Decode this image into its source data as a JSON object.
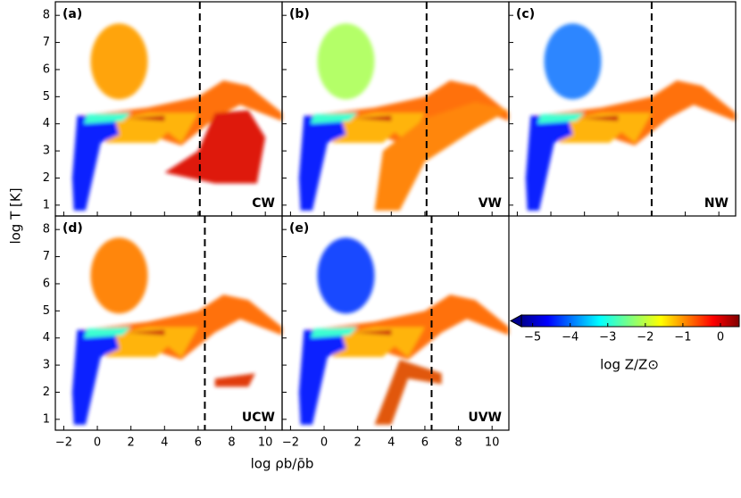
{
  "chart_data": {
    "type": "scatter",
    "xlabel": "log ρb/ρ̄b",
    "ylabel": "log T [K]",
    "xlim": [
      -2.5,
      11
    ],
    "xticks": [
      {
        "value": -2,
        "label": "−2"
      },
      0,
      2,
      4,
      6,
      8,
      10
    ],
    "ylim": [
      0.6,
      8.5
    ],
    "yticks": [
      1,
      2,
      3,
      4,
      5,
      6,
      7,
      8
    ],
    "panels": [
      {
        "label": "(a)",
        "name": "CW",
        "threshold": 6.1
      },
      {
        "label": "(b)",
        "name": "VW",
        "threshold": 6.1
      },
      {
        "label": "(c)",
        "name": "NW",
        "threshold": 6.0
      },
      {
        "label": "(d)",
        "name": "UCW",
        "threshold": 6.4
      },
      {
        "label": "(e)",
        "name": "UVW",
        "threshold": 6.4
      }
    ],
    "colorbar": {
      "label": "log Z/Z⊙",
      "lim": [
        -5.3,
        0.5
      ],
      "ticks": [
        {
          "value": -5,
          "label": "−5"
        },
        {
          "value": -4,
          "label": "−4"
        },
        {
          "value": -3,
          "label": "−3"
        },
        {
          "value": -2,
          "label": "−2"
        },
        {
          "value": -1,
          "label": "−1"
        },
        0
      ]
    }
  }
}
